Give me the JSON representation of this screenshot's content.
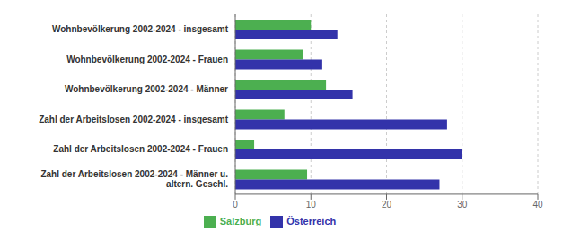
{
  "chart_data": {
    "type": "bar",
    "orientation": "horizontal",
    "categories": [
      "Wohnbevölkerung 2002-2024 - insgesamt",
      "Wohnbevölkerung 2002-2024 - Frauen",
      "Wohnbevölkerung 2002-2024 - Männer",
      "Zahl der Arbeitslosen 2002-2024 - insgesamt",
      "Zahl der Arbeitslosen 2002-2024 - Frauen",
      "Zahl der Arbeitslosen 2002-2024 - Männer u.\naltern. Geschl."
    ],
    "series": [
      {
        "name": "Salzburg",
        "color": "#4CAF50",
        "values": [
          10.0,
          9.0,
          12.0,
          6.5,
          2.5,
          9.5
        ]
      },
      {
        "name": "Österreich",
        "color": "#3333AA",
        "values": [
          13.5,
          11.5,
          15.5,
          28.0,
          30.0,
          27.0
        ]
      }
    ],
    "xlim": [
      0,
      40
    ],
    "xticks": [
      0,
      10,
      20,
      30,
      40
    ],
    "grid": true,
    "legend": "bottom"
  }
}
